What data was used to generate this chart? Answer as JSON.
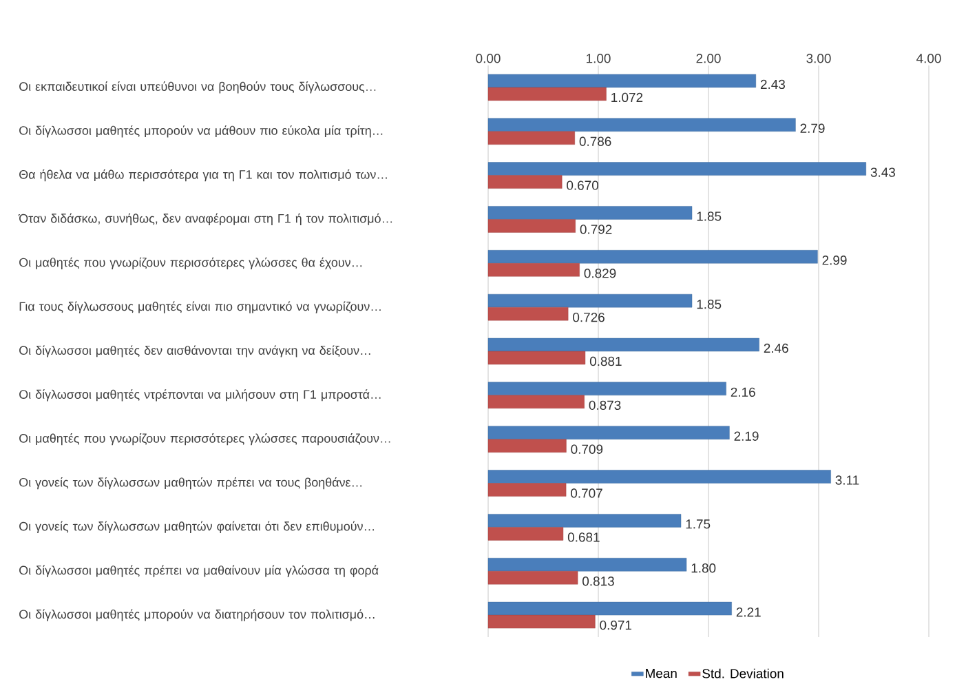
{
  "chart_data": {
    "type": "bar",
    "orientation": "horizontal",
    "categories": [
      "Οι εκπαιδευτικοί είναι υπεύθυνοι να βοηθούν τους δίγλωσσους…",
      "Οι δίγλωσσοι μαθητές μπορούν να μάθουν πιο εύκολα μία τρίτη…",
      "Θα ήθελα να μάθω περισσότερα για τη Γ1 και τον πολιτισμό των…",
      "Όταν διδάσκω, συνήθως, δεν αναφέρομαι στη Γ1 ή τον πολιτισμό…",
      "Οι μαθητές που γνωρίζουν περισσότερες γλώσσες θα έχουν…",
      "Για τους δίγλωσσους μαθητές είναι πιο σημαντικό να γνωρίζουν…",
      "Οι δίγλωσσοι μαθητές δεν αισθάνονται την ανάγκη να δείξουν…",
      "Οι δίγλωσσοι μαθητές ντρέπονται να μιλήσουν στη Γ1 μπροστά…",
      "Οι μαθητές που γνωρίζουν περισσότερες γλώσσες παρουσιάζουν…",
      "Οι γονείς των δίγλωσσων μαθητών πρέπει να τους βοηθάνε…",
      "Οι γονείς των δίγλωσσων μαθητών φαίνεται ότι δεν επιθυμούν…",
      "Οι δίγλωσσοι μαθητές πρέπει να μαθαίνουν μία γλώσσα τη φορά",
      "Οι δίγλωσσοι μαθητές μπορούν να διατηρήσουν τον πολιτισμό…"
    ],
    "series": [
      {
        "name": "Mean",
        "color": "#4a7ebb",
        "values": [
          2.43,
          2.79,
          3.43,
          1.85,
          2.99,
          1.85,
          2.46,
          2.16,
          2.19,
          3.11,
          1.75,
          1.8,
          2.21
        ],
        "value_labels": [
          "2.43",
          "2.79",
          "3.43",
          "1.85",
          "2.99",
          "1.85",
          "2.46",
          "2.16",
          "2.19",
          "3.11",
          "1.75",
          "1.80",
          "2.21"
        ]
      },
      {
        "name": "Std. Deviation",
        "color": "#c0504d",
        "values": [
          1.072,
          0.786,
          0.67,
          0.792,
          0.829,
          0.726,
          0.881,
          0.873,
          0.709,
          0.707,
          0.681,
          0.813,
          0.971
        ],
        "value_labels": [
          "1.072",
          "0.786",
          "0.670",
          "0.792",
          "0.829",
          "0.726",
          "0.881",
          "0.873",
          "0.709",
          "0.707",
          "0.681",
          "0.813",
          "0.971"
        ]
      }
    ],
    "xlim": [
      0,
      4
    ],
    "xticks": [
      {
        "value": 0,
        "label": "0.00"
      },
      {
        "value": 1,
        "label": "1.00"
      },
      {
        "value": 2,
        "label": "2.00"
      },
      {
        "value": 3,
        "label": "3.00"
      },
      {
        "value": 4,
        "label": "4.00"
      }
    ],
    "grid": "x",
    "legend": "bottom"
  }
}
